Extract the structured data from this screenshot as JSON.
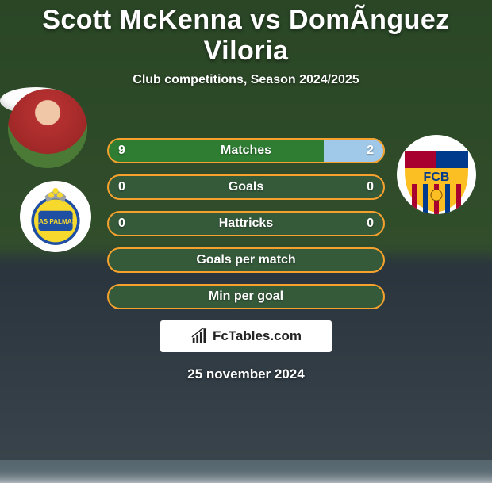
{
  "title": "Scott McKenna vs DomÃ­nguez Viloria",
  "subtitle": "Club competitions, Season 2024/2025",
  "date": "25 november 2024",
  "watermark": "FcTables.com",
  "colors": {
    "border": "#f6a12e",
    "left_bar": "#2e7d32",
    "right_bar": "#a0c8e8",
    "neutral_bar": "#355a3a",
    "text": "#ffffff"
  },
  "bar": {
    "height": 32,
    "border_radius": 16,
    "border_width": 2,
    "font_size": 16
  },
  "stats": [
    {
      "label": "Matches",
      "left_value": "9",
      "right_value": "2",
      "left_pct": 78,
      "right_pct": 22,
      "left_color": "#2e7d32",
      "right_color": "#a0c8e8",
      "show_values": true
    },
    {
      "label": "Goals",
      "left_value": "0",
      "right_value": "0",
      "left_pct": 50,
      "right_pct": 50,
      "left_color": "#355a3a",
      "right_color": "#355a3a",
      "show_values": true
    },
    {
      "label": "Hattricks",
      "left_value": "0",
      "right_value": "0",
      "left_pct": 50,
      "right_pct": 50,
      "left_color": "#355a3a",
      "right_color": "#355a3a",
      "show_values": true
    },
    {
      "label": "Goals per match",
      "left_value": "",
      "right_value": "",
      "left_pct": 50,
      "right_pct": 50,
      "left_color": "#355a3a",
      "right_color": "#355a3a",
      "show_values": false
    },
    {
      "label": "Min per goal",
      "left_value": "",
      "right_value": "",
      "left_pct": 50,
      "right_pct": 50,
      "left_color": "#355a3a",
      "right_color": "#355a3a",
      "show_values": false
    }
  ]
}
